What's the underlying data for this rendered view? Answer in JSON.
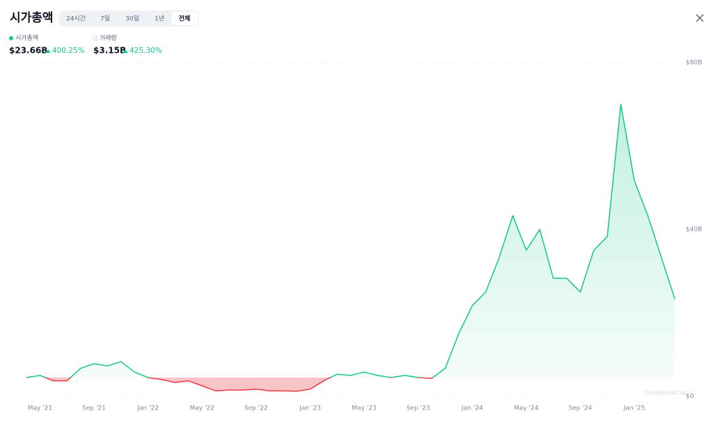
{
  "header": {
    "title": "시가총액",
    "tabs": [
      "24시간",
      "7일",
      "30일",
      "1년",
      "전체"
    ],
    "selected_tab": 4
  },
  "stats": [
    {
      "label": "시가총액",
      "value": "$23.66B",
      "change": "400.25%"
    },
    {
      "label": "거래량",
      "value": "$3.15B",
      "change": "425.30%"
    }
  ],
  "watermark": "CoinMarketCap",
  "chart_data": {
    "type": "area",
    "x": [
      "2021-04",
      "2021-05",
      "2021-06",
      "2021-07",
      "2021-08",
      "2021-09",
      "2021-10",
      "2021-11",
      "2021-12",
      "2022-01",
      "2022-02",
      "2022-03",
      "2022-04",
      "2022-05",
      "2022-06",
      "2022-07",
      "2022-08",
      "2022-09",
      "2022-10",
      "2022-11",
      "2022-12",
      "2023-01",
      "2023-02",
      "2023-03",
      "2023-04",
      "2023-05",
      "2023-06",
      "2023-07",
      "2023-08",
      "2023-09",
      "2023-10",
      "2023-11",
      "2023-12",
      "2024-01",
      "2024-02",
      "2024-03",
      "2024-04",
      "2024-05",
      "2024-06",
      "2024-07",
      "2024-08",
      "2024-09",
      "2024-10",
      "2024-11",
      "2024-12",
      "2025-01",
      "2025-02",
      "2025-03",
      "2025-04"
    ],
    "series": [
      {
        "name": "시가총액",
        "color": "#16c784",
        "down_color": "#ea3943",
        "values": [
          4.5,
          5,
          3.7,
          3.7,
          6.7,
          7.8,
          7.3,
          8.3,
          5.8,
          4.5,
          4,
          3.3,
          3.7,
          2.5,
          1.3,
          1.5,
          1.5,
          1.7,
          1.3,
          1.3,
          1.2,
          1.7,
          3.7,
          5.3,
          5,
          5.8,
          5,
          4.5,
          5,
          4.5,
          4.3,
          6.7,
          15,
          21.7,
          25,
          33.3,
          43.3,
          35,
          40,
          28.3,
          28.3,
          25,
          35,
          38.3,
          70,
          51.7,
          43.3,
          33.3,
          23.3
        ]
      }
    ],
    "ylim": [
      0,
      80
    ],
    "yticks": [
      {
        "value": 0,
        "label": "$0"
      },
      {
        "value": 40,
        "label": "$40B"
      },
      {
        "value": 80,
        "label": "$80B"
      }
    ],
    "xticks": [
      {
        "value": "2021-05",
        "label": "May '21"
      },
      {
        "value": "2021-09",
        "label": "Sep '21"
      },
      {
        "value": "2022-01",
        "label": "Jan '22"
      },
      {
        "value": "2022-05",
        "label": "May '22"
      },
      {
        "value": "2022-09",
        "label": "Sep '22"
      },
      {
        "value": "2023-01",
        "label": "Jan '23"
      },
      {
        "value": "2023-05",
        "label": "May '23"
      },
      {
        "value": "2023-09",
        "label": "Sep '23"
      },
      {
        "value": "2024-01",
        "label": "Jan '24"
      },
      {
        "value": "2024-05",
        "label": "May '24"
      },
      {
        "value": "2024-09",
        "label": "Sep '24"
      },
      {
        "value": "2025-01",
        "label": "Jan '25"
      }
    ],
    "grid": true
  }
}
